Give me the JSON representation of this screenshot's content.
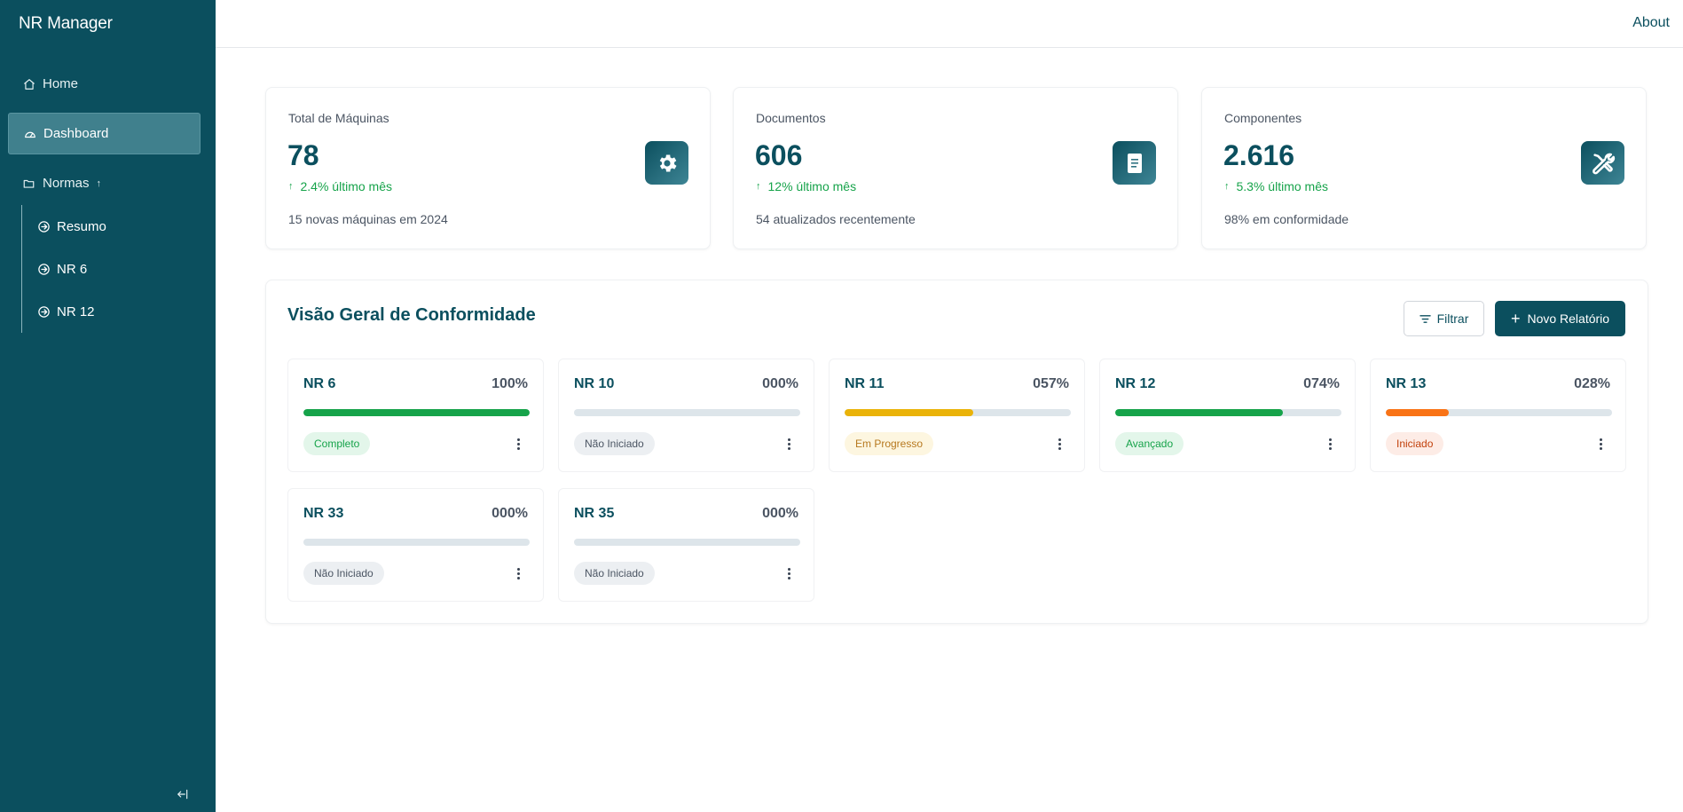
{
  "app": {
    "title": "NR Manager"
  },
  "sidebar": {
    "items": [
      {
        "label": "Home",
        "icon": "home-icon"
      },
      {
        "label": "Dashboard",
        "icon": "gauge-icon",
        "active": true
      },
      {
        "label": "Normas",
        "icon": "folder-icon",
        "expanded": true
      }
    ],
    "subitems": [
      {
        "label": "Resumo",
        "icon": "circle-arrow-right-icon"
      },
      {
        "label": "NR 6",
        "icon": "circle-arrow-right-icon"
      },
      {
        "label": "NR 12",
        "icon": "circle-arrow-right-icon"
      }
    ],
    "collapse_icon": "collapse-left-icon"
  },
  "header": {
    "about_label": "About"
  },
  "stats": [
    {
      "label": "Total de Máquinas",
      "value": "78",
      "trend": "2.4% último mês",
      "note": "15 novas máquinas em 2024",
      "icon": "gear-icon"
    },
    {
      "label": "Documentos",
      "value": "606",
      "trend": "12% último mês",
      "note": "54 atualizados recentemente",
      "icon": "document-icon"
    },
    {
      "label": "Componentes",
      "value": "2.616",
      "trend": "5.3% último mês",
      "note": "98% em conformidade",
      "icon": "tools-icon"
    }
  ],
  "overview": {
    "title": "Visão Geral de Conformidade",
    "filter_label": "Filtrar",
    "new_report_label": "Novo Relatório",
    "norms": [
      {
        "name": "NR 6",
        "percent_label": "100%",
        "progress": 1.0,
        "status": "Completo",
        "status_color": "#16a34a",
        "status_bg": "#e3f6ea",
        "bar_color": "#16a34a"
      },
      {
        "name": "NR 10",
        "percent_label": "000%",
        "progress": 0.0,
        "status": "Não Iniciado",
        "status_color": "#4b5563",
        "status_bg": "#eceff2",
        "bar_color": "#16a34a"
      },
      {
        "name": "NR 11",
        "percent_label": "057%",
        "progress": 0.57,
        "status": "Em Progresso",
        "status_color": "#b7791f",
        "status_bg": "#fdf6e0",
        "bar_color": "#eab308"
      },
      {
        "name": "NR 12",
        "percent_label": "074%",
        "progress": 0.74,
        "status": "Avançado",
        "status_color": "#16a34a",
        "status_bg": "#e3f6ea",
        "bar_color": "#16a34a"
      },
      {
        "name": "NR 13",
        "percent_label": "028%",
        "progress": 0.28,
        "status": "Iniciado",
        "status_color": "#c2410c",
        "status_bg": "#fdece6",
        "bar_color": "#f97316"
      },
      {
        "name": "NR 33",
        "percent_label": "000%",
        "progress": 0.0,
        "status": "Não Iniciado",
        "status_color": "#4b5563",
        "status_bg": "#eceff2",
        "bar_color": "#16a34a"
      },
      {
        "name": "NR 35",
        "percent_label": "000%",
        "progress": 0.0,
        "status": "Não Iniciado",
        "status_color": "#4b5563",
        "status_bg": "#eceff2",
        "bar_color": "#16a34a"
      }
    ]
  }
}
